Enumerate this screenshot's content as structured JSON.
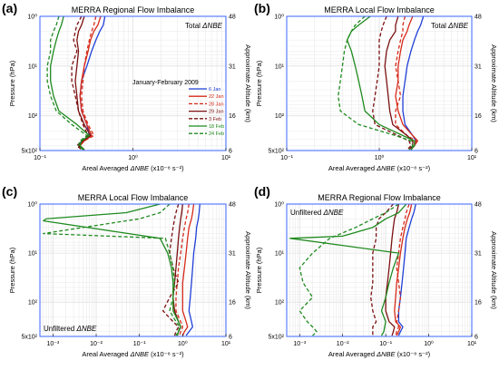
{
  "colors": {
    "6 Jan": "#1f3fd6",
    "22 Jan": "#d62a1a",
    "28 Jan": "#d62a1a",
    "29 Jan": "#7a0f0f",
    "3 Feb": "#7a0f0f",
    "18 Feb": "#1f8a1f",
    "24 Feb": "#1f8a1f",
    "axis": "#3a66ff",
    "grid": "#e0e0e0"
  },
  "legend": {
    "title": "January-February 2009",
    "entries": [
      {
        "label": "6 Jan",
        "dash": "solid"
      },
      {
        "label": "22 Jan",
        "dash": "solid"
      },
      {
        "label": "28 Jan",
        "dash": "dashed"
      },
      {
        "label": "29 Jan",
        "dash": "solid"
      },
      {
        "label": "3 Feb",
        "dash": "dashed"
      },
      {
        "label": "18 Feb",
        "dash": "solid"
      },
      {
        "label": "24 Feb",
        "dash": "dashed"
      }
    ]
  },
  "chart_data": [
    {
      "type": "line",
      "panel": "(a)",
      "title": "MERRA Regional Flow Imbalance",
      "annotation": "Total ΔNBE",
      "xlabel": "Areal Averaged ΔNBE (x10⁻⁸ s⁻²)",
      "ylabel": "Pressure (hPa)",
      "y2label": "Approximate Altitude (km)",
      "xscale": "log",
      "yscale": "log",
      "xlim": [
        0.1,
        10
      ],
      "ylim": [
        500,
        1
      ],
      "xticks": [
        "10⁻¹",
        "10⁰",
        "10¹"
      ],
      "yticks": [
        "10⁰",
        "10¹",
        "10²",
        "5x10²"
      ],
      "y2ticks": [
        "48",
        "31",
        "16",
        "6"
      ],
      "grid": true,
      "legend_position": "middle-right",
      "series": [
        {
          "name": "6 Jan",
          "x": [
            0.5,
            0.48,
            0.44,
            0.4,
            0.36,
            0.32,
            0.28,
            0.27,
            0.28,
            0.32,
            0.34,
            0.28,
            0.26,
            0.3
          ],
          "y": [
            1,
            1.5,
            2,
            3,
            5,
            10,
            20,
            40,
            80,
            150,
            250,
            320,
            400,
            480
          ]
        },
        {
          "name": "22 Jan",
          "x": [
            0.45,
            0.42,
            0.38,
            0.35,
            0.33,
            0.3,
            0.28,
            0.27,
            0.28,
            0.32,
            0.36,
            0.3,
            0.27,
            0.3
          ],
          "y": [
            1,
            1.5,
            2,
            3,
            5,
            10,
            20,
            40,
            80,
            150,
            250,
            320,
            400,
            480
          ]
        },
        {
          "name": "28 Jan",
          "x": [
            0.4,
            0.38,
            0.36,
            0.34,
            0.32,
            0.3,
            0.29,
            0.28,
            0.29,
            0.33,
            0.38,
            0.3,
            0.27,
            0.3
          ],
          "y": [
            1,
            1.5,
            2,
            3,
            5,
            10,
            20,
            40,
            80,
            150,
            250,
            320,
            400,
            480
          ]
        },
        {
          "name": "29 Jan",
          "x": [
            0.3,
            0.28,
            0.26,
            0.25,
            0.26,
            0.25,
            0.24,
            0.25,
            0.26,
            0.3,
            0.35,
            0.29,
            0.26,
            0.3
          ],
          "y": [
            1,
            1.5,
            2,
            3,
            5,
            10,
            20,
            40,
            80,
            150,
            250,
            320,
            400,
            480
          ]
        },
        {
          "name": "3 Feb",
          "x": [
            0.28,
            0.25,
            0.24,
            0.23,
            0.25,
            0.22,
            0.22,
            0.24,
            0.26,
            0.29,
            0.33,
            0.28,
            0.25,
            0.28
          ],
          "y": [
            1,
            1.5,
            2,
            3,
            5,
            10,
            20,
            40,
            80,
            150,
            250,
            320,
            400,
            480
          ]
        },
        {
          "name": "18 Feb",
          "x": [
            0.18,
            0.17,
            0.16,
            0.15,
            0.14,
            0.13,
            0.13,
            0.14,
            0.16,
            0.25,
            0.34,
            0.28,
            0.27,
            0.3
          ],
          "y": [
            1,
            1.5,
            2,
            3,
            5,
            10,
            20,
            40,
            80,
            150,
            250,
            320,
            400,
            480
          ]
        },
        {
          "name": "24 Feb",
          "x": [
            0.16,
            0.15,
            0.14,
            0.13,
            0.13,
            0.12,
            0.12,
            0.13,
            0.15,
            0.22,
            0.32,
            0.27,
            0.26,
            0.29
          ],
          "y": [
            1,
            1.5,
            2,
            3,
            5,
            10,
            20,
            40,
            80,
            150,
            250,
            320,
            400,
            480
          ]
        }
      ]
    },
    {
      "type": "line",
      "panel": "(b)",
      "title": "MERRA Local Flow Imbalance",
      "annotation": "Total ΔNBE",
      "xlabel": "Areal Averaged ΔNBE (x10⁻⁸ s⁻²)",
      "ylabel": "Pressure (hPa)",
      "y2label": "Approximate Altitude (km)",
      "xscale": "log",
      "yscale": "log",
      "xlim": [
        0.1,
        10
      ],
      "ylim": [
        500,
        1
      ],
      "xticks": [
        "10⁻¹",
        "10⁰",
        "10¹"
      ],
      "yticks": [
        "10⁰",
        "10¹",
        "10²",
        "5x10²"
      ],
      "y2ticks": [
        "48",
        "31",
        "16",
        "6"
      ],
      "grid": true,
      "series": [
        {
          "name": "6 Jan",
          "x": [
            3.0,
            2.8,
            2.6,
            2.4,
            2.2,
            2.0,
            1.9,
            1.8,
            1.8,
            1.9,
            2.3,
            2.5,
            2.4,
            2.2
          ],
          "y": [
            1,
            1.5,
            2,
            3,
            5,
            10,
            20,
            40,
            80,
            150,
            250,
            320,
            400,
            480
          ]
        },
        {
          "name": "22 Jan",
          "x": [
            2.3,
            2.1,
            2.0,
            1.8,
            1.7,
            1.6,
            1.6,
            1.5,
            1.6,
            1.8,
            2.3,
            2.6,
            2.4,
            2.2
          ],
          "y": [
            1,
            1.5,
            2,
            3,
            5,
            10,
            20,
            40,
            80,
            150,
            250,
            320,
            400,
            480
          ]
        },
        {
          "name": "28 Jan",
          "x": [
            1.9,
            1.8,
            1.8,
            1.7,
            1.6,
            1.5,
            1.6,
            1.7,
            1.5,
            1.5,
            2.0,
            2.5,
            2.4,
            2.2
          ],
          "y": [
            1,
            1.5,
            2,
            3,
            5,
            10,
            20,
            40,
            80,
            150,
            250,
            320,
            400,
            480
          ]
        },
        {
          "name": "29 Jan",
          "x": [
            1.6,
            1.5,
            1.5,
            1.3,
            1.2,
            1.15,
            1.2,
            1.25,
            1.3,
            1.4,
            2.0,
            2.3,
            2.3,
            2.1
          ],
          "y": [
            1,
            1.5,
            2,
            3,
            5,
            10,
            20,
            40,
            80,
            150,
            250,
            320,
            400,
            480
          ]
        },
        {
          "name": "3 Feb",
          "x": [
            1.2,
            1.1,
            1.05,
            1.0,
            1.0,
            1.0,
            0.95,
            0.9,
            0.85,
            0.9,
            1.6,
            2.1,
            2.2,
            2.0
          ],
          "y": [
            1,
            1.5,
            2,
            3,
            5,
            10,
            20,
            40,
            80,
            150,
            250,
            320,
            400,
            480
          ]
        },
        {
          "name": "18 Feb",
          "x": [
            0.8,
            0.6,
            0.5,
            0.45,
            0.5,
            0.55,
            0.6,
            0.65,
            0.7,
            1.0,
            1.8,
            2.4,
            2.4,
            2.2
          ],
          "y": [
            1,
            1.5,
            2,
            3,
            5,
            10,
            20,
            40,
            80,
            150,
            250,
            320,
            400,
            480
          ]
        },
        {
          "name": "24 Feb",
          "x": [
            0.7,
            0.55,
            0.5,
            0.45,
            0.42,
            0.4,
            0.38,
            0.36,
            0.38,
            0.6,
            1.5,
            2.2,
            2.3,
            2.1
          ],
          "y": [
            1,
            1.5,
            2,
            3,
            5,
            10,
            20,
            40,
            80,
            150,
            250,
            320,
            400,
            480
          ]
        }
      ]
    },
    {
      "type": "line",
      "panel": "(c)",
      "title": "MERRA Local Flow Imbalance",
      "annotation": "Unfiltered ΔNBE",
      "xlabel": "Areal Averaged ΔNBE (x10⁻⁸ s⁻²)",
      "ylabel": "Pressure (hPa)",
      "y2label": "Approximate Altitude (km)",
      "xscale": "log",
      "yscale": "log",
      "xlim": [
        0.0005,
        10
      ],
      "ylim": [
        500,
        1
      ],
      "xticks": [
        "10⁻³",
        "10⁻²",
        "10⁻¹",
        "10⁰",
        "10¹"
      ],
      "yticks": [
        "10⁰",
        "10¹",
        "10²",
        "5x10²"
      ],
      "y2ticks": [
        "48",
        "31",
        "16",
        "6"
      ],
      "grid": true,
      "series": [
        {
          "name": "6 Jan",
          "x": [
            2.5,
            2.4,
            2.3,
            2.1,
            2.0,
            1.8,
            1.7,
            1.6,
            1.5,
            1.4,
            1.6,
            1.7,
            1.4,
            1.2
          ],
          "y": [
            1,
            1.5,
            2,
            3,
            5,
            10,
            20,
            40,
            80,
            150,
            250,
            320,
            400,
            480
          ]
        },
        {
          "name": "22 Jan",
          "x": [
            1.8,
            1.7,
            1.6,
            1.4,
            1.3,
            1.2,
            1.1,
            1.0,
            1.0,
            1.0,
            1.2,
            1.3,
            1.1,
            1.0
          ],
          "y": [
            1,
            1.5,
            2,
            3,
            5,
            10,
            20,
            40,
            80,
            150,
            250,
            320,
            400,
            480
          ]
        },
        {
          "name": "28 Jan",
          "x": [
            1.4,
            1.3,
            1.2,
            1.1,
            1.0,
            0.9,
            0.8,
            0.75,
            0.7,
            0.7,
            0.9,
            1.0,
            0.9,
            0.85
          ],
          "y": [
            1,
            1.5,
            2,
            3,
            5,
            10,
            20,
            40,
            80,
            150,
            250,
            320,
            400,
            480
          ]
        },
        {
          "name": "29 Jan",
          "x": [
            1.0,
            0.95,
            0.9,
            0.85,
            0.8,
            0.75,
            0.7,
            0.65,
            0.6,
            0.65,
            0.8,
            0.9,
            0.8,
            0.75
          ],
          "y": [
            1,
            1.5,
            2,
            3,
            5,
            10,
            20,
            40,
            80,
            150,
            250,
            320,
            400,
            480
          ]
        },
        {
          "name": "3 Feb",
          "x": [
            0.8,
            0.7,
            0.65,
            0.6,
            0.55,
            0.5,
            0.6,
            0.8,
            0.5,
            0.35,
            0.6,
            0.8,
            0.7,
            0.65
          ],
          "y": [
            1,
            1.5,
            2,
            3,
            5,
            10,
            20,
            40,
            80,
            150,
            250,
            320,
            400,
            480
          ]
        },
        {
          "name": "18 Feb",
          "x": [
            0.3,
            0.05,
            0.0007,
            0.0006,
            0.3,
            0.45,
            0.55,
            0.6,
            0.6,
            0.6,
            0.8,
            0.9,
            0.8,
            0.75
          ],
          "y": [
            1,
            1.5,
            2,
            2.2,
            5,
            10,
            20,
            40,
            80,
            150,
            250,
            320,
            400,
            480
          ]
        },
        {
          "name": "24 Feb",
          "x": [
            0.5,
            0.3,
            0.1,
            0.0006,
            0.4,
            0.5,
            0.6,
            0.65,
            0.6,
            0.5,
            0.7,
            0.85,
            0.8,
            0.7
          ],
          "y": [
            1,
            1.5,
            2,
            4,
            5,
            10,
            20,
            40,
            80,
            150,
            250,
            320,
            400,
            480
          ]
        }
      ]
    },
    {
      "type": "line",
      "panel": "(d)",
      "title": "MERRA Regional Flow Imbalance",
      "annotation": "Unfiltered ΔNBE",
      "xlabel": "Areal Averaged ΔNBE (x10⁻⁸ s⁻²)",
      "ylabel": "Pressure (hPa)",
      "y2label": "Approximate Altitude (km)",
      "xscale": "log",
      "yscale": "log",
      "xlim": [
        0.0005,
        10
      ],
      "ylim": [
        500,
        1
      ],
      "xticks": [
        "10⁻³",
        "10⁻²",
        "10⁻¹",
        "10⁰",
        "10¹"
      ],
      "yticks": [
        "10⁰",
        "10¹",
        "10²",
        "5x10²"
      ],
      "y2ticks": [
        "48",
        "31",
        "16",
        "6"
      ],
      "grid": true,
      "series": [
        {
          "name": "6 Jan",
          "x": [
            0.5,
            0.45,
            0.4,
            0.35,
            0.3,
            0.28,
            0.26,
            0.24,
            0.22,
            0.2,
            0.2,
            0.25,
            0.22,
            0.2
          ],
          "y": [
            1,
            1.5,
            2,
            3,
            5,
            10,
            20,
            40,
            80,
            150,
            250,
            320,
            400,
            480
          ]
        },
        {
          "name": "22 Jan",
          "x": [
            0.4,
            0.36,
            0.32,
            0.28,
            0.25,
            0.22,
            0.2,
            0.18,
            0.17,
            0.16,
            0.17,
            0.22,
            0.2,
            0.18
          ],
          "y": [
            1,
            1.5,
            2,
            3,
            5,
            10,
            20,
            40,
            80,
            150,
            250,
            320,
            400,
            480
          ]
        },
        {
          "name": "28 Jan",
          "x": [
            0.35,
            0.3,
            0.28,
            0.25,
            0.22,
            0.2,
            0.18,
            0.2,
            0.22,
            0.2,
            0.18,
            0.2,
            0.18,
            0.17
          ],
          "y": [
            1,
            1.5,
            2,
            3,
            5,
            10,
            20,
            40,
            80,
            150,
            250,
            320,
            400,
            480
          ]
        },
        {
          "name": "29 Jan",
          "x": [
            0.2,
            0.18,
            0.16,
            0.15,
            0.14,
            0.13,
            0.12,
            0.11,
            0.1,
            0.1,
            0.12,
            0.16,
            0.15,
            0.14
          ],
          "y": [
            1,
            1.5,
            2,
            3,
            5,
            10,
            20,
            40,
            80,
            150,
            250,
            320,
            400,
            480
          ]
        },
        {
          "name": "3 Feb",
          "x": [
            0.15,
            0.1,
            0.07,
            0.06,
            0.06,
            0.05,
            0.05,
            0.05,
            0.045,
            0.05,
            0.06,
            0.05,
            0.05,
            0.05
          ],
          "y": [
            1,
            1.5,
            2,
            3,
            5,
            10,
            20,
            40,
            80,
            150,
            250,
            320,
            400,
            480
          ]
        },
        {
          "name": "18 Feb",
          "x": [
            0.3,
            0.2,
            0.1,
            0.05,
            0.01,
            0.0006,
            0.2,
            0.15,
            0.12,
            0.1,
            0.08,
            0.1,
            0.09,
            0.08
          ],
          "y": [
            1,
            1.5,
            2,
            3,
            4.5,
            5,
            10,
            20,
            40,
            80,
            150,
            250,
            400,
            480
          ]
        },
        {
          "name": "24 Feb",
          "x": [
            0.2,
            0.1,
            0.05,
            0.02,
            0.005,
            0.002,
            0.001,
            0.0012,
            0.002,
            0.001,
            0.0015,
            0.002,
            0.0025,
            0.002
          ],
          "y": [
            1,
            1.5,
            2,
            3,
            5,
            10,
            20,
            40,
            80,
            150,
            250,
            320,
            400,
            480
          ]
        }
      ]
    }
  ]
}
